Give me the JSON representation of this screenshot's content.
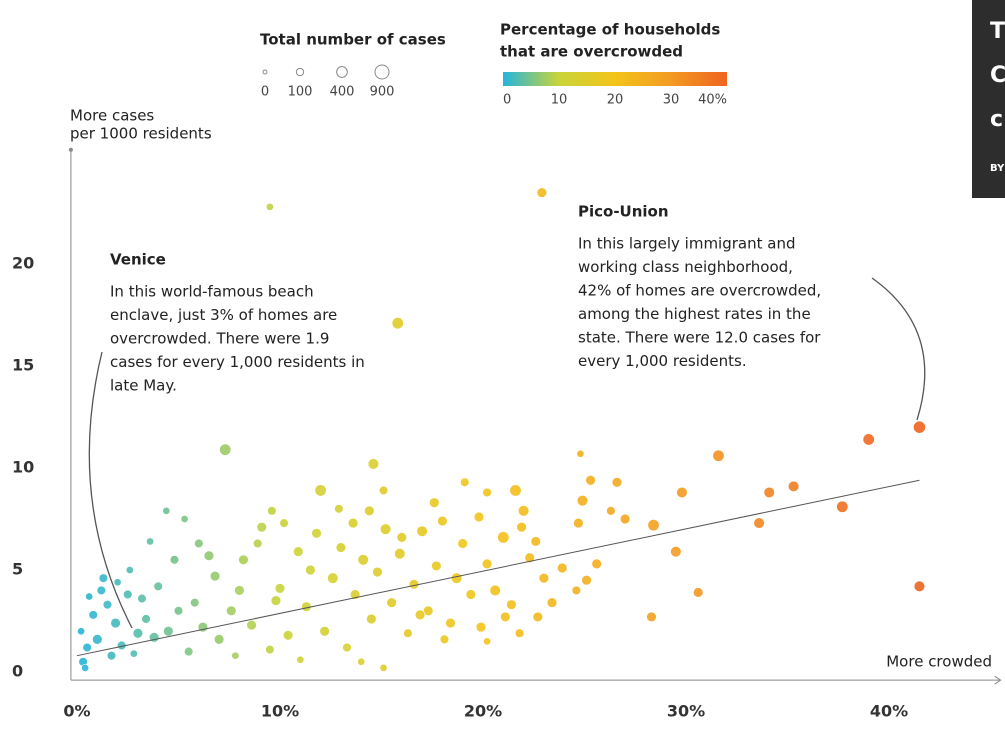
{
  "chart_data": {
    "type": "scatter",
    "y_label_lines": [
      "More cases",
      "per 1000 residents"
    ],
    "x_label": "More crowded",
    "size_legend": {
      "title": "Total number of cases",
      "values": [
        0,
        100,
        400,
        900
      ]
    },
    "color_legend": {
      "title_lines": [
        "Percentage of households",
        "that are overcrowded"
      ],
      "ticks": [
        0,
        10,
        20,
        30,
        {
          "value": 40,
          "label": "40%"
        }
      ]
    },
    "colorscale": [
      [
        0,
        "#25b4dc"
      ],
      [
        10,
        "#c9d43a"
      ],
      [
        20,
        "#f3c41a"
      ],
      [
        30,
        "#f39a22"
      ],
      [
        40,
        "#ee6420"
      ]
    ],
    "xlim": [
      -0.3,
      45.5
    ],
    "ylim": [
      -0.4,
      25.6
    ],
    "xticks": [
      {
        "value": 0,
        "label": "0%"
      },
      {
        "value": 10,
        "label": "10%"
      },
      {
        "value": 20,
        "label": "20%"
      },
      {
        "value": 30,
        "label": "30%"
      },
      {
        "value": 40,
        "label": "40%"
      }
    ],
    "yticks": [
      0,
      5,
      10,
      15,
      20
    ],
    "grid": false,
    "trend_line": {
      "x": [
        0,
        41.5
      ],
      "y": [
        0.8,
        9.4
      ],
      "color": "#555"
    },
    "annotations": [
      {
        "title": "Venice",
        "lines": [
          "In this world-famous beach",
          "enclave, just 3% of homes are",
          "overcrowded. There were 1.9",
          "cases for every 1,000 residents in",
          "late May."
        ]
      },
      {
        "title": "Pico-Union",
        "lines": [
          "In this largely immigrant and",
          "working class neighborhood,",
          "42% of homes are overcrowded,",
          "among the highest rates in the",
          "state. There were 12.0 cases for",
          "every 1,000 residents."
        ]
      }
    ],
    "sidebar_fragment": [
      "T",
      "C",
      "c",
      "BY"
    ],
    "series": [
      {
        "x": [
          9.5,
          22.9,
          15.8,
          7.3,
          14.6,
          41.5,
          39.0,
          31.6,
          24.8,
          41.5,
          3.0,
          12.0,
          15.1,
          21.6,
          19.1,
          26.6,
          25.3,
          29.8,
          34.1,
          35.3,
          37.7,
          33.6,
          28.4,
          29.5,
          30.6,
          28.3,
          24.9,
          24.7,
          27.0,
          26.3,
          23.9,
          25.6,
          25.1,
          24.6,
          22.7,
          23.4,
          21.1,
          20.2,
          4.4,
          5.3,
          1.3,
          2.6,
          0.3,
          0.5,
          0.2,
          0.8,
          1.0,
          1.5,
          1.9,
          2.2,
          2.5,
          0.6,
          1.2,
          3.4,
          3.8,
          2.8,
          1.7,
          0.4,
          2.0,
          3.2,
          4.0,
          4.5,
          4.8,
          3.6,
          5.8,
          5.5,
          6.2,
          6.8,
          7.0,
          7.6,
          8.2,
          8.6,
          9.1,
          9.6,
          10.0,
          10.4,
          10.9,
          11.3,
          11.8,
          12.2,
          12.6,
          13.0,
          13.3,
          13.7,
          14.1,
          14.5,
          14.8,
          15.2,
          15.5,
          15.9,
          16.3,
          16.6,
          17.0,
          17.3,
          17.7,
          18.0,
          18.4,
          18.7,
          19.0,
          19.4,
          19.8,
          20.2,
          20.6,
          21.0,
          21.4,
          21.9,
          22.3,
          22.6,
          23.0,
          12.9,
          10.2,
          8.9,
          6.0,
          7.8,
          9.5,
          11.0,
          15.1,
          14.0,
          18.1,
          16.9,
          13.6,
          17.6,
          20.2,
          22.0,
          11.5,
          9.8,
          8.0,
          6.5,
          5.0,
          19.9,
          21.8,
          16.0,
          14.4
        ],
        "values": [
          22.8,
          23.5,
          17.1,
          10.9,
          10.2,
          12.0,
          11.4,
          10.6,
          10.7,
          4.2,
          1.9,
          8.9,
          8.9,
          8.9,
          9.3,
          9.3,
          9.4,
          8.8,
          8.8,
          9.1,
          8.1,
          7.3,
          7.2,
          5.9,
          3.9,
          2.7,
          8.4,
          7.3,
          7.5,
          7.9,
          5.1,
          5.3,
          4.5,
          4.0,
          2.7,
          3.4,
          2.7,
          1.5,
          7.9,
          7.5,
          4.6,
          5.0,
          0.5,
          1.2,
          2.0,
          2.8,
          1.6,
          3.3,
          2.4,
          1.3,
          3.8,
          3.7,
          4.0,
          2.6,
          1.7,
          0.9,
          0.8,
          0.2,
          4.4,
          3.6,
          4.2,
          2.0,
          5.5,
          6.4,
          3.4,
          1.0,
          2.2,
          4.7,
          1.6,
          3.0,
          5.5,
          2.3,
          7.1,
          7.9,
          4.1,
          1.8,
          5.9,
          3.2,
          6.8,
          2.0,
          4.6,
          6.1,
          1.2,
          3.8,
          5.5,
          2.6,
          4.9,
          7.0,
          3.4,
          5.8,
          1.9,
          4.3,
          6.9,
          3.0,
          5.2,
          7.4,
          2.4,
          4.6,
          6.3,
          3.8,
          7.6,
          5.3,
          4.0,
          6.6,
          3.3,
          7.1,
          5.6,
          6.4,
          4.6,
          8.0,
          7.3,
          6.3,
          6.3,
          0.8,
          1.1,
          0.6,
          0.2,
          0.5,
          1.6,
          2.8,
          7.3,
          8.3,
          8.8,
          7.9,
          5.0,
          3.5,
          4.0,
          5.7,
          3.0,
          2.2,
          1.9,
          6.6,
          7.9
        ],
        "sizes": [
          100,
          300,
          500,
          500,
          400,
          600,
          500,
          500,
          100,
          400,
          300,
          500,
          200,
          500,
          200,
          300,
          300,
          400,
          400,
          400,
          500,
          400,
          500,
          400,
          300,
          300,
          400,
          300,
          300,
          200,
          300,
          300,
          300,
          200,
          300,
          300,
          300,
          100,
          100,
          100,
          200,
          100,
          200,
          200,
          100,
          200,
          300,
          200,
          300,
          200,
          200,
          100,
          200,
          200,
          300,
          100,
          200,
          100,
          100,
          200,
          200,
          300,
          200,
          100,
          200,
          200,
          300,
          300,
          300,
          300,
          300,
          300,
          300,
          200,
          300,
          300,
          300,
          300,
          300,
          300,
          400,
          300,
          200,
          300,
          400,
          300,
          300,
          400,
          300,
          400,
          200,
          300,
          400,
          300,
          300,
          300,
          300,
          400,
          300,
          300,
          300,
          300,
          400,
          500,
          300,
          300,
          300,
          300,
          300,
          200,
          200,
          200,
          200,
          100,
          200,
          100,
          100,
          100,
          200,
          300,
          300,
          300,
          200,
          400,
          300,
          300,
          300,
          300,
          200,
          300,
          200,
          300,
          300
        ]
      }
    ]
  }
}
